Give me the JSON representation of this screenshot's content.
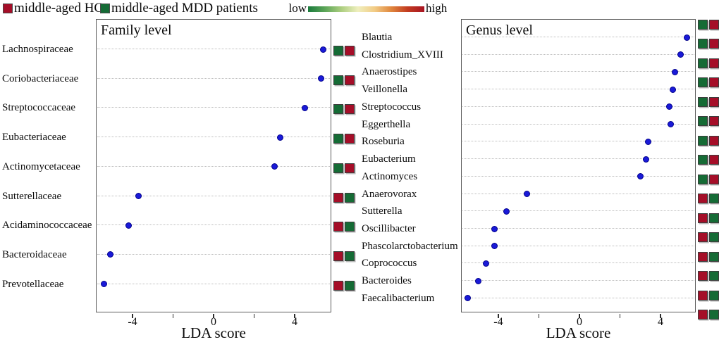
{
  "legend": {
    "hc_label": "middle-aged HCs",
    "mdd_label": "middle-aged MDD patients",
    "gradient_low": "low",
    "gradient_high": "high"
  },
  "colors": {
    "hc_red": "#A50E28",
    "mdd_green": "#156B35",
    "dot_blue": "#1A1AD8",
    "dot_border": "#00008B",
    "gradient_stops": [
      "#1A7A3C",
      "#5AA457",
      "#ACCE80",
      "#EFEFBE",
      "#F2CC86",
      "#E0873E",
      "#C23B20",
      "#A81422"
    ]
  },
  "chart_data": [
    {
      "type": "scatter",
      "title": "Family level",
      "xlabel": "LDA score",
      "xlim": [
        -5.81,
        5.81
      ],
      "xticks_marks": [
        -4,
        -2,
        0,
        2,
        4
      ],
      "xticks_labels": [
        {
          "value": -4,
          "text": "-4"
        },
        {
          "value": 0,
          "text": "0"
        },
        {
          "value": 4,
          "text": "4"
        }
      ],
      "grid": "dotted-horizontal",
      "points": [
        {
          "label": "Lachnospiraceae",
          "lda": 5.4,
          "squares": [
            "green",
            "red"
          ]
        },
        {
          "label": "Coriobacteriaceae",
          "lda": 5.3,
          "squares": [
            "green",
            "red"
          ]
        },
        {
          "label": "Streptococcaceae",
          "lda": 4.5,
          "squares": [
            "green",
            "red"
          ]
        },
        {
          "label": "Eubacteriaceae",
          "lda": 3.3,
          "squares": [
            "green",
            "red"
          ]
        },
        {
          "label": "Actinomycetaceae",
          "lda": 3.0,
          "squares": [
            "green",
            "red"
          ]
        },
        {
          "label": "Sutterellaceae",
          "lda": -3.7,
          "squares": [
            "red",
            "green"
          ]
        },
        {
          "label": "Acidaminococcaceae",
          "lda": -4.2,
          "squares": [
            "red",
            "green"
          ]
        },
        {
          "label": "Bacteroidaceae",
          "lda": -5.1,
          "squares": [
            "red",
            "green"
          ]
        },
        {
          "label": "Prevotellaceae",
          "lda": -5.4,
          "squares": [
            "red",
            "green"
          ]
        }
      ]
    },
    {
      "type": "scatter",
      "title": "Genus level",
      "xlabel": "LDA score",
      "xlim": [
        -5.84,
        5.74
      ],
      "xticks_marks": [
        -4,
        -2,
        0,
        2,
        4
      ],
      "xticks_labels": [
        {
          "value": -4,
          "text": "-4"
        },
        {
          "value": 0,
          "text": "0"
        },
        {
          "value": 4,
          "text": "4"
        }
      ],
      "grid": "dotted-horizontal",
      "points": [
        {
          "label": "Blautia",
          "lda": 5.3,
          "squares": [
            "green",
            "red"
          ]
        },
        {
          "label": "Clostridium_XVIII",
          "lda": 5.0,
          "squares": [
            "green",
            "red"
          ]
        },
        {
          "label": "Anaerostipes",
          "lda": 4.7,
          "squares": [
            "green",
            "red"
          ]
        },
        {
          "label": "Veillonella",
          "lda": 4.6,
          "squares": [
            "green",
            "red"
          ]
        },
        {
          "label": "Streptococcus",
          "lda": 4.45,
          "squares": [
            "green",
            "red"
          ]
        },
        {
          "label": "Eggerthella",
          "lda": 4.5,
          "squares": [
            "green",
            "red"
          ]
        },
        {
          "label": "Roseburia",
          "lda": 3.4,
          "squares": [
            "green",
            "red"
          ]
        },
        {
          "label": "Eubacterium",
          "lda": 3.3,
          "squares": [
            "green",
            "red"
          ]
        },
        {
          "label": "Actinomyces",
          "lda": 3.0,
          "squares": [
            "green",
            "red"
          ]
        },
        {
          "label": "Anaerovorax",
          "lda": -2.6,
          "squares": [
            "red",
            "green"
          ]
        },
        {
          "label": "Sutterella",
          "lda": -3.6,
          "squares": [
            "red",
            "green"
          ]
        },
        {
          "label": "Oscillibacter",
          "lda": -4.2,
          "squares": [
            "red",
            "green"
          ]
        },
        {
          "label": "Phascolarctobacterium",
          "lda": -4.2,
          "squares": [
            "red",
            "green"
          ]
        },
        {
          "label": "Coprococcus",
          "lda": -4.6,
          "squares": [
            "red",
            "green"
          ]
        },
        {
          "label": "Bacteroides",
          "lda": -5.0,
          "squares": [
            "red",
            "green"
          ]
        },
        {
          "label": "Faecalibacterium",
          "lda": -5.5,
          "squares": [
            "red",
            "green"
          ]
        }
      ]
    }
  ]
}
